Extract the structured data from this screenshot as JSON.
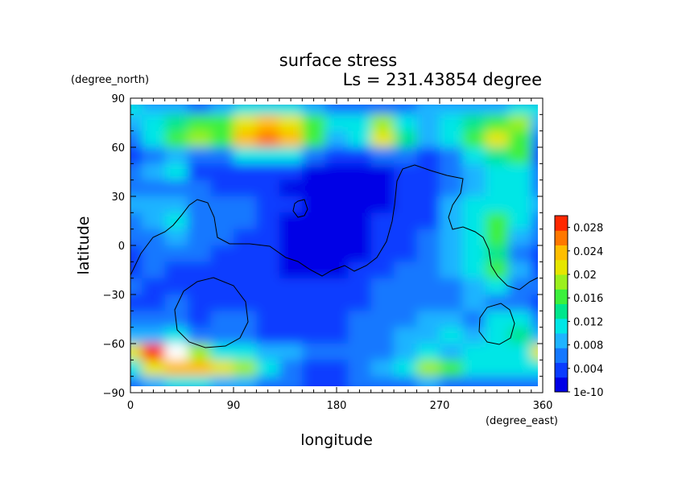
{
  "chart_data": {
    "type": "heatmap",
    "title": "surface stress",
    "subtitle": "Ls = 231.43854 degree",
    "xlabel": "longitude",
    "ylabel": "latitude",
    "xunit": "(degree_east)",
    "yunit": "(degree_north)",
    "xlim": [
      0,
      360
    ],
    "ylim": [
      -90,
      90
    ],
    "xticks": [
      0,
      90,
      180,
      270,
      360
    ],
    "yticks": [
      -90,
      -60,
      -30,
      0,
      30,
      60,
      90
    ],
    "colorbar": {
      "min": 0,
      "max": 0.03,
      "labels": [
        "1e-10",
        "0.004",
        "0.008",
        "0.012",
        "0.016",
        "0.02",
        "0.024",
        "0.028"
      ],
      "label_values": [
        0,
        0.004,
        0.008,
        0.012,
        0.016,
        0.02,
        0.024,
        0.028
      ],
      "colors": [
        "#0000e6",
        "#0a3cff",
        "#1478ff",
        "#1eb4ff",
        "#00e6e6",
        "#00e68c",
        "#3cf03c",
        "#9bf01e",
        "#e6e600",
        "#ffbe00",
        "#ff7800",
        "#ff2800"
      ]
    },
    "field": {
      "lon": [
        0,
        20,
        40,
        60,
        80,
        100,
        120,
        140,
        160,
        180,
        200,
        220,
        240,
        260,
        280,
        300,
        320,
        340,
        360
      ],
      "lat": [
        85,
        75,
        65,
        55,
        45,
        35,
        25,
        15,
        5,
        -5,
        -15,
        -25,
        -35,
        -45,
        -55,
        -65,
        -75,
        -85
      ],
      "values": [
        [
          0.01,
          0.009,
          0.008,
          0.007,
          0.008,
          0.01,
          0.012,
          0.01,
          0.008,
          0.007,
          0.006,
          0.006,
          0.007,
          0.008,
          0.009,
          0.009,
          0.009,
          0.01,
          0.01
        ],
        [
          0.008,
          0.01,
          0.014,
          0.017,
          0.015,
          0.02,
          0.024,
          0.022,
          0.016,
          0.01,
          0.012,
          0.018,
          0.012,
          0.008,
          0.01,
          0.014,
          0.016,
          0.018,
          0.008
        ],
        [
          0.006,
          0.01,
          0.016,
          0.018,
          0.016,
          0.024,
          0.027,
          0.024,
          0.016,
          0.009,
          0.01,
          0.02,
          0.014,
          0.009,
          0.012,
          0.016,
          0.02,
          0.017,
          0.006
        ],
        [
          0.004,
          0.006,
          0.008,
          0.007,
          0.006,
          0.01,
          0.012,
          0.01,
          0.006,
          0.004,
          0.004,
          0.006,
          0.005,
          0.004,
          0.006,
          0.01,
          0.014,
          0.016,
          0.004
        ],
        [
          0.005,
          0.008,
          0.012,
          0.004,
          0.003,
          0.004,
          0.004,
          0.003,
          0.002,
          0.002,
          0.002,
          0.002,
          0.003,
          0.003,
          0.005,
          0.008,
          0.01,
          0.012,
          0.005
        ],
        [
          0.006,
          0.006,
          0.006,
          0.005,
          0.004,
          0.003,
          0.003,
          0.002,
          0.001,
          0.001,
          0.001,
          0.002,
          0.003,
          0.004,
          0.006,
          0.008,
          0.01,
          0.01,
          0.006
        ],
        [
          0.008,
          0.008,
          0.009,
          0.006,
          0.007,
          0.005,
          0.004,
          0.003,
          0.002,
          0.002,
          0.002,
          0.002,
          0.003,
          0.004,
          0.008,
          0.011,
          0.012,
          0.01,
          0.008
        ],
        [
          0.007,
          0.008,
          0.01,
          0.006,
          0.006,
          0.005,
          0.003,
          0.002,
          0.002,
          0.002,
          0.002,
          0.003,
          0.004,
          0.004,
          0.008,
          0.012,
          0.016,
          0.01,
          0.007
        ],
        [
          0.005,
          0.007,
          0.008,
          0.006,
          0.006,
          0.004,
          0.003,
          0.002,
          0.002,
          0.002,
          0.002,
          0.003,
          0.004,
          0.005,
          0.009,
          0.012,
          0.015,
          0.008,
          0.005
        ],
        [
          0.004,
          0.005,
          0.006,
          0.005,
          0.004,
          0.004,
          0.003,
          0.002,
          0.002,
          0.002,
          0.002,
          0.003,
          0.004,
          0.005,
          0.008,
          0.012,
          0.014,
          0.007,
          0.004
        ],
        [
          0.004,
          0.005,
          0.004,
          0.004,
          0.004,
          0.003,
          0.003,
          0.002,
          0.002,
          0.002,
          0.003,
          0.004,
          0.005,
          0.006,
          0.008,
          0.01,
          0.016,
          0.008,
          0.004
        ],
        [
          0.005,
          0.004,
          0.003,
          0.003,
          0.003,
          0.003,
          0.003,
          0.003,
          0.003,
          0.003,
          0.004,
          0.005,
          0.005,
          0.006,
          0.007,
          0.009,
          0.01,
          0.007,
          0.005
        ],
        [
          0.004,
          0.004,
          0.005,
          0.004,
          0.004,
          0.004,
          0.003,
          0.003,
          0.003,
          0.003,
          0.004,
          0.005,
          0.005,
          0.006,
          0.006,
          0.008,
          0.006,
          0.005,
          0.004
        ],
        [
          0.005,
          0.006,
          0.007,
          0.004,
          0.007,
          0.005,
          0.004,
          0.004,
          0.004,
          0.004,
          0.005,
          0.006,
          0.007,
          0.008,
          0.008,
          0.007,
          0.01,
          0.012,
          0.005
        ],
        [
          0.008,
          0.009,
          0.01,
          0.006,
          0.006,
          0.005,
          0.004,
          0.004,
          0.004,
          0.004,
          0.005,
          0.006,
          0.008,
          0.009,
          0.01,
          0.008,
          0.012,
          0.014,
          0.008
        ],
        [
          0.02,
          0.03,
          0.032,
          0.018,
          0.012,
          0.01,
          0.009,
          0.008,
          0.006,
          0.005,
          0.005,
          0.006,
          0.008,
          0.01,
          0.009,
          0.01,
          0.012,
          0.012,
          0.02
        ],
        [
          0.012,
          0.02,
          0.024,
          0.024,
          0.022,
          0.018,
          0.01,
          0.006,
          0.004,
          0.004,
          0.005,
          0.008,
          0.012,
          0.018,
          0.016,
          0.012,
          0.01,
          0.01,
          0.012
        ],
        [
          0.006,
          0.008,
          0.01,
          0.01,
          0.009,
          0.008,
          0.006,
          0.005,
          0.004,
          0.004,
          0.005,
          0.006,
          0.007,
          0.008,
          0.007,
          0.007,
          0.006,
          0.006,
          0.006
        ]
      ]
    },
    "grid": false,
    "legend": "colorbar right"
  }
}
